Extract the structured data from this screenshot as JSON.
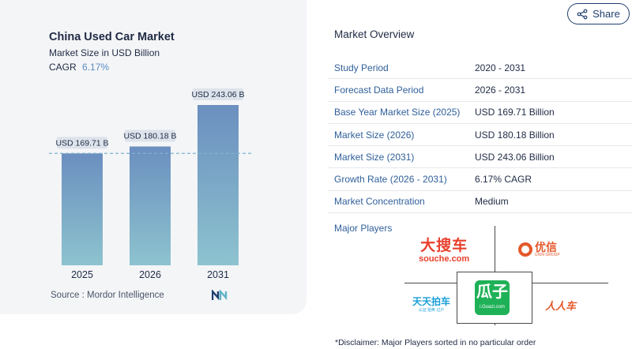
{
  "chart_data": {
    "type": "bar",
    "title": "China Used Car Market",
    "subtitle": "Market Size in USD Billion",
    "cagr_label": "CAGR",
    "cagr_value": "6.17%",
    "categories": [
      "2025",
      "2026",
      "2031"
    ],
    "values": [
      169.71,
      180.18,
      243.06
    ],
    "value_labels": [
      "USD 169.71 B",
      "USD 180.18 B",
      "USD 243.06 B"
    ],
    "reference_line": 169.71,
    "ylim": [
      0,
      243.06
    ],
    "grid": false,
    "colors": {
      "bar_top": "#6b8fbf",
      "bar_bottom": "#8dc3cf",
      "label_bg": "#dde3eb",
      "ref_line": "#7fb3cf"
    }
  },
  "source": {
    "label": "Source :",
    "value": "Mordor Intelligence"
  },
  "logo_icon": "mordor-intelligence-logo-icon",
  "share": {
    "label": "Share",
    "icon": "share-icon"
  },
  "overview": {
    "title": "Market Overview",
    "rows": [
      {
        "label": "Study Period",
        "value": "2020 - 2031"
      },
      {
        "label": "Forecast Data Period",
        "value": "2026 - 2031"
      },
      {
        "label": "Base Year Market Size (2025)",
        "value": "USD 169.71 Billion"
      },
      {
        "label": "Market Size (2026)",
        "value": "USD 180.18 Billion"
      },
      {
        "label": "Market Size (2031)",
        "value": "USD 243.06 Billion"
      },
      {
        "label": "Growth Rate (2026 - 2031)",
        "value": "6.17% CAGR"
      },
      {
        "label": "Market Concentration",
        "value": "Medium"
      }
    ]
  },
  "players": {
    "title": "Major Players",
    "souche": {
      "big": "大搜车",
      "small": "souche.com"
    },
    "uxin": {
      "big": "优信",
      "small": "UXIN GROUP"
    },
    "ttpc": {
      "big": "天天拍车",
      "small": "认证 拍卖 过户"
    },
    "guazi": {
      "big": "瓜子",
      "small": "i.Guazi.com"
    },
    "renren": {
      "big": "人人车"
    }
  },
  "disclaimer": "*Disclaimer: Major Players sorted in no particular order"
}
